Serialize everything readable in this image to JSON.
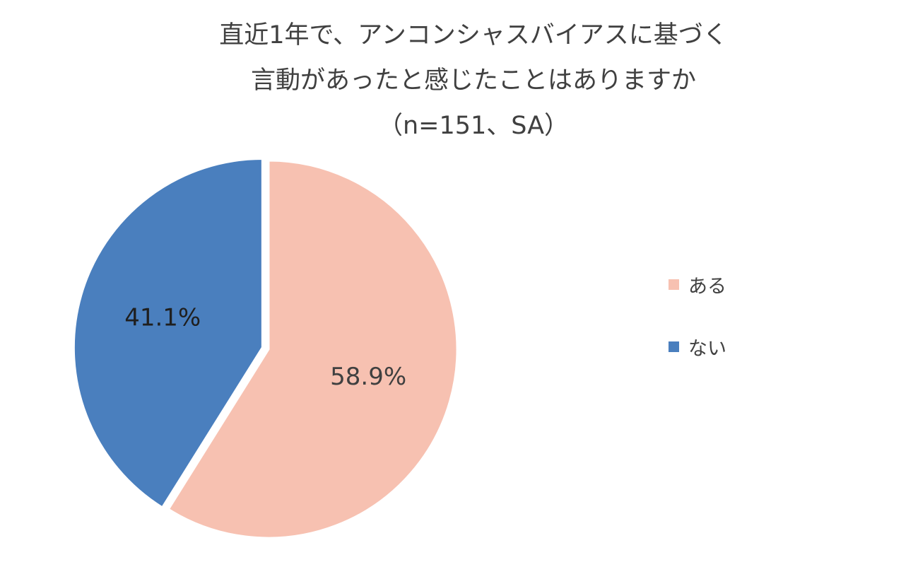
{
  "chart_data": {
    "type": "pie",
    "title": "直近1年で、アンコンシャスバイアスに基づく言動があったと感じたことはありますか（n=151、SA）",
    "title_lines": [
      "直近1年で、アンコンシャスバイアスに基づく",
      "言動があったと感じたことはありますか",
      "（n=151、SA）"
    ],
    "categories": [
      "ある",
      "ない"
    ],
    "values": [
      58.9,
      41.1
    ],
    "data_labels": [
      "58.9%",
      "41.1%"
    ],
    "colors": [
      "#f7c1b1",
      "#4a7fbe"
    ],
    "legend_position": "right",
    "start_angle": "12 o'clock",
    "direction": "clockwise",
    "exploded_slice": "ない"
  }
}
